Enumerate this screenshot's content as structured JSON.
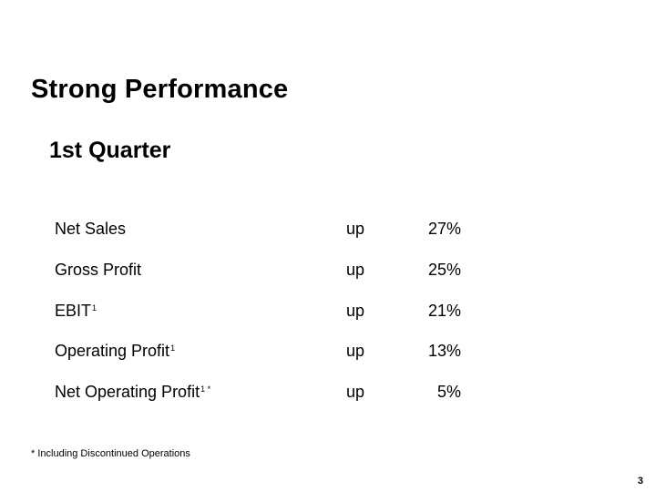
{
  "slide": {
    "title": "Strong Performance",
    "subtitle": "1st Quarter",
    "metrics": [
      {
        "label": "Net Sales",
        "marker": "",
        "direction": "up",
        "value": "27%"
      },
      {
        "label": "Gross Profit",
        "marker": "",
        "direction": "up",
        "value": "25%"
      },
      {
        "label": "EBIT",
        "marker": "1",
        "direction": "up",
        "value": "21%"
      },
      {
        "label": "Operating Profit",
        "marker": "1",
        "direction": "up",
        "value": "13%"
      },
      {
        "label": "Net Operating Profit",
        "marker": "1 *",
        "direction": "up",
        "value": "5%"
      }
    ],
    "footnote": "* Including Discontinued Operations",
    "page_number": "3"
  }
}
